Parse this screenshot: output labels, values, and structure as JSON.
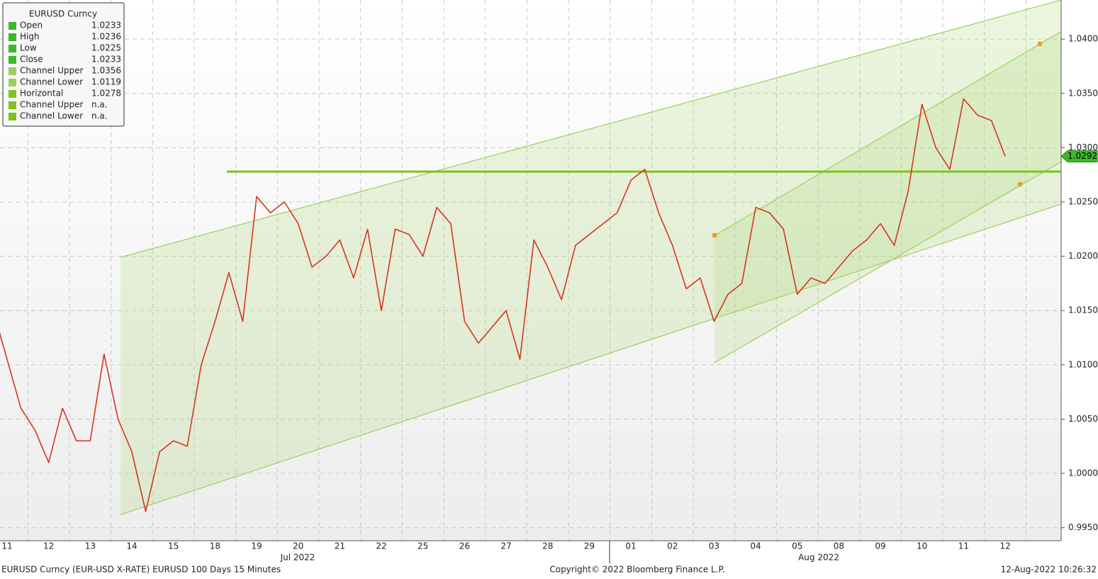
{
  "chart_data": {
    "type": "line",
    "title": "EURUSD Curncy",
    "categories": [
      null,
      "11",
      null,
      null,
      "12",
      null,
      null,
      "13",
      null,
      null,
      "14",
      null,
      null,
      "15",
      null,
      null,
      "18",
      null,
      null,
      "19",
      null,
      null,
      "20",
      null,
      null,
      "21",
      null,
      null,
      "22",
      null,
      null,
      "25",
      null,
      null,
      "26",
      null,
      null,
      "27",
      null,
      null,
      "28",
      null,
      null,
      "29",
      null,
      null,
      "01",
      null,
      null,
      "02",
      null,
      null,
      "03",
      null,
      null,
      "04",
      null,
      null,
      "05",
      null,
      null,
      "08",
      null,
      null,
      "09",
      null,
      null,
      "10",
      null,
      null,
      "11",
      null,
      null,
      "12",
      null
    ],
    "series": [
      {
        "name": "EURUSD Curncy",
        "color": "#d6361f",
        "values": [
          1.015,
          1.0105,
          1.006,
          1.004,
          1.001,
          1.006,
          1.003,
          1.003,
          1.011,
          1.005,
          1.002,
          0.9965,
          1.002,
          1.003,
          1.0025,
          1.01,
          1.014,
          1.0185,
          1.014,
          1.0255,
          1.024,
          1.025,
          1.023,
          1.019,
          1.02,
          1.0215,
          1.018,
          1.0225,
          1.015,
          1.0225,
          1.022,
          1.02,
          1.0245,
          1.023,
          1.014,
          1.012,
          1.0135,
          1.015,
          1.0105,
          1.0215,
          1.019,
          1.016,
          1.021,
          1.022,
          1.023,
          1.024,
          1.027,
          1.028,
          1.024,
          1.021,
          1.017,
          1.018,
          1.014,
          1.0165,
          1.0175,
          1.0245,
          1.024,
          1.0225,
          1.0165,
          1.018,
          1.0175,
          1.019,
          1.0205,
          1.0215,
          1.023,
          1.021,
          1.026,
          1.034,
          1.03,
          1.028,
          1.0345,
          1.033,
          1.0325,
          1.0292,
          null
        ]
      }
    ],
    "month_labels": [
      "Jul 2022",
      "Aug 2022"
    ],
    "ylim": [
      0.9938,
      1.0436
    ],
    "yticks": [
      {
        "value": 0.995,
        "label": "0.9950"
      },
      {
        "value": 1.0,
        "label": "1.0000"
      },
      {
        "value": 1.005,
        "label": "1.0050"
      },
      {
        "value": 1.01,
        "label": "1.0100"
      },
      {
        "value": 1.015,
        "label": "1.0150"
      },
      {
        "value": 1.02,
        "label": "1.0200"
      },
      {
        "value": 1.025,
        "label": "1.0250"
      },
      {
        "value": 1.03,
        "label": "1.0300"
      },
      {
        "value": 1.035,
        "label": "1.0350"
      },
      {
        "value": 1.04,
        "label": "1.0400"
      }
    ],
    "grid": true,
    "last_price": 1.0292,
    "channels": [
      {
        "upper": [
          1.0199,
          1.0436
        ],
        "lower": [
          0.9962,
          1.0248
        ]
      },
      {
        "upper": [
          1.0219,
          1.0407
        ],
        "lower": [
          1.0102,
          1.0287
        ]
      }
    ],
    "legend": [
      {
        "name": "Open",
        "value": 1.0233,
        "color": "#3cb828"
      },
      {
        "name": "High",
        "value": 1.0236,
        "color": "#3cb828"
      },
      {
        "name": "Low",
        "value": 1.0225,
        "color": "#3cb828"
      },
      {
        "name": "Close",
        "value": 1.0233,
        "color": "#3cb828"
      },
      {
        "name": "Channel Upper",
        "value": 1.0356,
        "color": "#9bd05c"
      },
      {
        "name": "Channel Lower",
        "value": 1.0119,
        "color": "#9bd05c"
      },
      {
        "name": "Horizontal",
        "value": 1.0278,
        "color": "#7dc21e"
      },
      {
        "name": "Channel Upper",
        "value": "n.a.",
        "color": "#7dc21e"
      },
      {
        "name": "Channel Lower",
        "value": "n.a.",
        "color": "#7dc21e"
      }
    ]
  },
  "footer": {
    "left": "EURUSD Curncy (EUR-USD X-RATE) EURUSD 100 Days 15 Minutes",
    "center": "Copyright© 2022 Bloomberg Finance L.P.",
    "right": "12-Aug-2022 10:26:32"
  }
}
